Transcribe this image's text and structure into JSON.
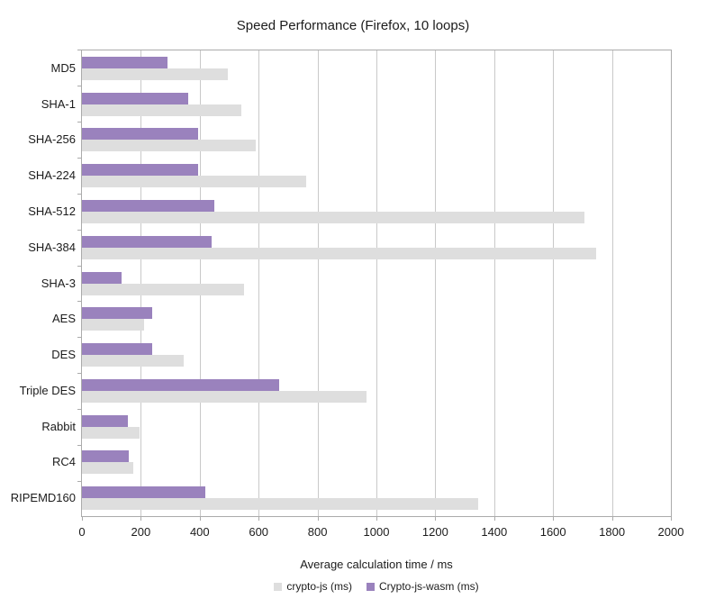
{
  "chart_data": {
    "type": "bar",
    "orientation": "horizontal",
    "title": "Speed Performance (Firefox, 10 loops)",
    "xlabel": "Average calculation time / ms",
    "xlim": [
      0,
      2000
    ],
    "xticks": [
      0,
      200,
      400,
      600,
      800,
      1000,
      1200,
      1400,
      1600,
      1800,
      2000
    ],
    "grid": true,
    "legend_position": "bottom",
    "categories": [
      "MD5",
      "SHA-1",
      "SHA-256",
      "SHA-224",
      "SHA-512",
      "SHA-384",
      "SHA-3",
      "AES",
      "DES",
      "Triple DES",
      "Rabbit",
      "RC4",
      "RIPEMD160"
    ],
    "series": [
      {
        "name": "crypto-js (ms)",
        "color": "#dedede",
        "values": [
          495,
          540,
          590,
          760,
          1705,
          1745,
          550,
          210,
          345,
          965,
          195,
          175,
          1345
        ]
      },
      {
        "name": "Crypto-js-wasm (ms)",
        "color": "#9a82bd",
        "values": [
          290,
          360,
          395,
          395,
          450,
          440,
          135,
          240,
          240,
          670,
          155,
          160,
          420
        ]
      }
    ],
    "group_draw_order_top_to_bottom": [
      "Crypto-js-wasm (ms)",
      "crypto-js (ms)"
    ]
  },
  "style": {
    "grid_color": "#c9c9c9",
    "axis_color": "#ababab",
    "text_color": "#1c1c1c",
    "background": "#ffffff"
  }
}
